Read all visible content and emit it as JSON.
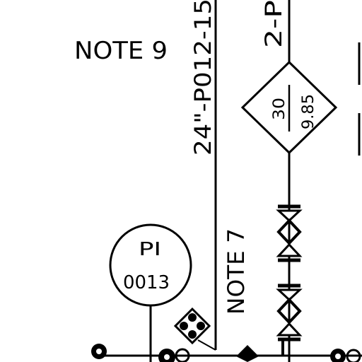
{
  "drawing": {
    "note_9": "NOTE 9",
    "note_7": "NOTE 7",
    "line_main": "24\"-P012-15",
    "line_branch": "2-P",
    "line_right": "",
    "diamond_top": "30",
    "diamond_bottom": "9.85",
    "instrument_tag": "PI",
    "instrument_number": "0013"
  },
  "colors": {
    "ink": "#000000",
    "paper": "#ffffff"
  }
}
